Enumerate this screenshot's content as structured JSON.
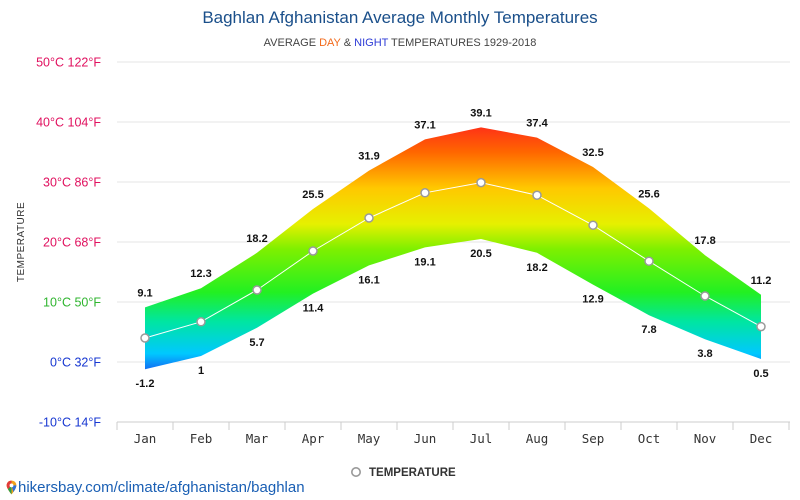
{
  "chart_data": {
    "type": "area",
    "title": "Baghlan Afghanistan Average Monthly Temperatures",
    "subtitle": {
      "prefix": "AVERAGE ",
      "day": "DAY",
      "amp": " & ",
      "night": "NIGHT",
      "suffix": " TEMPERATURES 1929-2018",
      "day_color": "#f26a1b",
      "night_color": "#2d3bd6"
    },
    "ylabel": "TEMPERATURE",
    "categories": [
      "Jan",
      "Feb",
      "Mar",
      "Apr",
      "May",
      "Jun",
      "Jul",
      "Aug",
      "Sep",
      "Oct",
      "Nov",
      "Dec"
    ],
    "ylim": [
      -10,
      50
    ],
    "yticks": [
      {
        "value": 50,
        "label": "50°C 122°F",
        "color": "#e0115f"
      },
      {
        "value": 40,
        "label": "40°C 104°F",
        "color": "#e0115f"
      },
      {
        "value": 30,
        "label": "30°C 86°F",
        "color": "#e0115f"
      },
      {
        "value": 20,
        "label": "20°C 68°F",
        "color": "#e0115f"
      },
      {
        "value": 10,
        "label": "10°C 50°F",
        "color": "#2fb52f"
      },
      {
        "value": 0,
        "label": "0°C 32°F",
        "color": "#1737d1"
      },
      {
        "value": -10,
        "label": "-10°C 14°F",
        "color": "#1737d1"
      }
    ],
    "grid": true,
    "series": [
      {
        "values": [
          9.1,
          12.3,
          18.2,
          25.5,
          31.9,
          37.1,
          39.1,
          37.4,
          32.5,
          25.6,
          17.8,
          11.2
        ]
      },
      {
        "values": [
          -1.2,
          1,
          5.7,
          11.4,
          16.1,
          19.1,
          20.5,
          18.2,
          12.9,
          7.8,
          3.8,
          0.5
        ]
      },
      {
        "name": "TEMPERATURE",
        "values": [
          4,
          6.7,
          12,
          18.5,
          24,
          28.2,
          29.9,
          27.8,
          22.8,
          16.8,
          11,
          5.9
        ]
      }
    ],
    "legend": "bottom-center"
  },
  "source": {
    "text": "hikersbay.com/climate/afghanistan/baghlan"
  }
}
